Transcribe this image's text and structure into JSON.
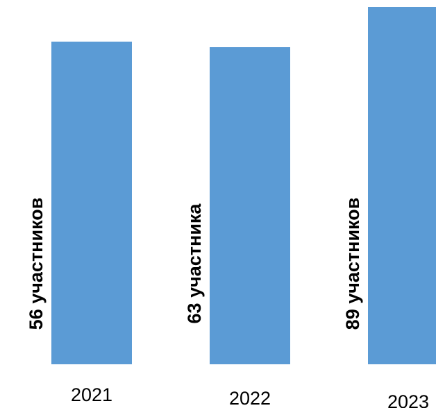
{
  "chart_data": {
    "type": "bar",
    "title": "",
    "xlabel": "",
    "ylabel": "",
    "categories": [
      "2021",
      "2022",
      "2023"
    ],
    "values": [
      56,
      63,
      89
    ],
    "labels": [
      "56 участников",
      "63 участника",
      "89 участников"
    ],
    "grid": false,
    "legend": "none",
    "colors": {
      "bar": "#5b9bd5",
      "text": "#000000"
    }
  }
}
